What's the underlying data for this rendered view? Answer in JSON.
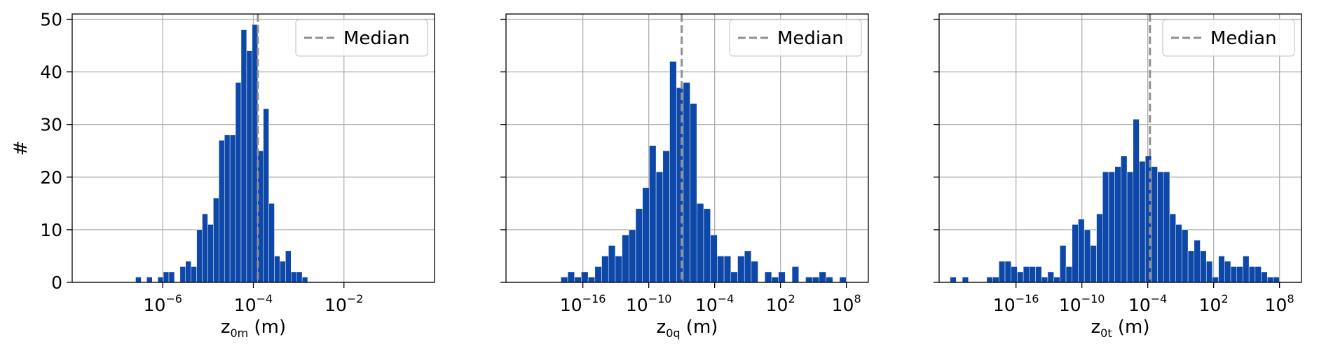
{
  "colors": {
    "bar": "#0d47a8",
    "median": "#909090",
    "grid": "#b0b0b0"
  },
  "chart_data": [
    {
      "type": "bar",
      "title": "",
      "xlabel_main": "z",
      "xlabel_sub": "0m",
      "xlabel_unit": "(m)",
      "ylabel": "#",
      "xscale": "log",
      "xlim_log10": [
        -8,
        0
      ],
      "ylim": [
        0,
        51
      ],
      "xticks": [
        {
          "base": "10",
          "exp": "−6",
          "log10": -6
        },
        {
          "base": "10",
          "exp": "−4",
          "log10": -4
        },
        {
          "base": "10",
          "exp": "−2",
          "log10": -2
        }
      ],
      "yticks": [
        0,
        10,
        20,
        30,
        40,
        50
      ],
      "bin_range_log10": [
        -6.6,
        -2.8
      ],
      "counts": [
        1,
        0,
        1,
        0,
        1,
        2,
        2,
        0,
        3,
        4,
        3,
        10,
        13,
        11,
        16,
        27,
        28,
        28,
        38,
        48,
        44,
        49,
        25,
        33,
        15,
        5,
        4,
        6,
        2,
        2,
        1
      ],
      "median_log10": -3.9,
      "legend": {
        "label": "Median",
        "position": "upper right"
      },
      "grid": true
    },
    {
      "type": "bar",
      "title": "",
      "xlabel_main": "z",
      "xlabel_sub": "0q",
      "xlabel_unit": "(m)",
      "ylabel": "",
      "xscale": "log",
      "xlim_log10": [
        -23,
        10
      ],
      "ylim": [
        0,
        51
      ],
      "xticks": [
        {
          "base": "10",
          "exp": "−16",
          "log10": -16
        },
        {
          "base": "10",
          "exp": "−10",
          "log10": -10
        },
        {
          "base": "10",
          "exp": "−4",
          "log10": -4
        },
        {
          "base": "10",
          "exp": "2",
          "log10": 2
        },
        {
          "base": "10",
          "exp": "8",
          "log10": 8
        }
      ],
      "yticks": [
        0,
        10,
        20,
        30,
        40,
        50
      ],
      "bin_range_log10": [
        -18,
        8
      ],
      "counts": [
        1,
        2,
        1,
        2,
        1,
        3,
        5,
        7,
        5,
        9,
        10,
        14,
        18,
        26,
        21,
        25,
        42,
        37,
        38,
        34,
        15,
        14,
        9,
        5,
        5,
        2,
        5,
        6,
        4,
        0,
        2,
        1,
        2,
        0,
        3,
        0,
        1,
        1,
        2,
        1,
        0,
        1
      ],
      "median_log10": -7,
      "legend": {
        "label": "Median",
        "position": "upper right"
      },
      "grid": true
    },
    {
      "type": "bar",
      "title": "",
      "xlabel_main": "z",
      "xlabel_sub": "0t",
      "xlabel_unit": "(m)",
      "ylabel": "",
      "xscale": "log",
      "xlim_log10": [
        -23,
        10
      ],
      "ylim": [
        0,
        51
      ],
      "xticks": [
        {
          "base": "10",
          "exp": "−16",
          "log10": -16
        },
        {
          "base": "10",
          "exp": "−10",
          "log10": -10
        },
        {
          "base": "10",
          "exp": "−4",
          "log10": -4
        },
        {
          "base": "10",
          "exp": "2",
          "log10": 2
        },
        {
          "base": "10",
          "exp": "8",
          "log10": 8
        }
      ],
      "yticks": [
        0,
        10,
        20,
        30,
        40,
        50
      ],
      "bin_range_log10": [
        -22,
        8
      ],
      "counts": [
        1,
        0,
        1,
        0,
        0,
        0,
        1,
        1,
        4,
        4,
        3,
        2,
        3,
        3,
        3,
        1,
        2,
        1,
        7,
        3,
        11,
        12,
        10,
        7,
        13,
        21,
        21,
        22,
        24,
        21,
        31,
        23,
        24,
        22,
        21,
        21,
        13,
        11,
        10,
        6,
        8,
        6,
        4,
        1,
        5,
        4,
        3,
        3,
        5,
        3,
        3,
        2,
        1,
        1
      ],
      "median_log10": -3.8,
      "legend": {
        "label": "Median",
        "position": "upper right"
      },
      "grid": true
    }
  ]
}
